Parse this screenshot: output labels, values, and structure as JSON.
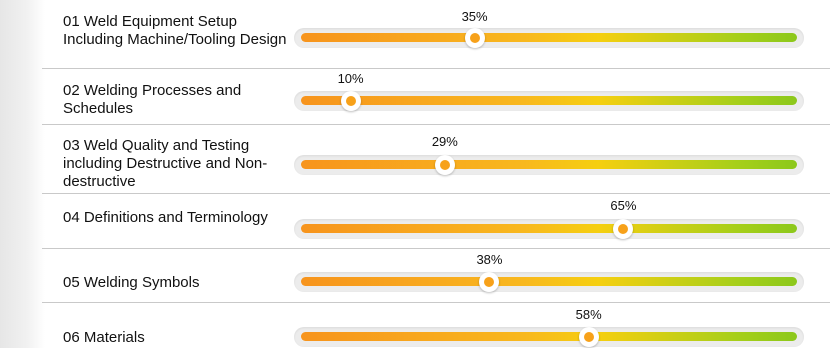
{
  "rows": [
    {
      "label": "01 Weld Equipment Setup Including Machine/Tooling Design",
      "percent_text": "35%",
      "progress": 0.35
    },
    {
      "label": "02 Welding Processes and Schedules",
      "percent_text": "10%",
      "progress": 0.1
    },
    {
      "label": "03 Weld Quality and Testing including Destructive and Non-destructive",
      "percent_text": "29%",
      "progress": 0.29
    },
    {
      "label": "04 Definitions and Terminology",
      "percent_text": "65%",
      "progress": 0.65
    },
    {
      "label": "05 Welding Symbols",
      "percent_text": "38%",
      "progress": 0.38
    },
    {
      "label": "06 Materials",
      "percent_text": "58%",
      "progress": 0.58
    }
  ],
  "colors": {
    "track_start": "#f7941d",
    "track_mid": "#f5cf10",
    "track_end": "#8cc81b",
    "knob_dot": "#f7a11a"
  }
}
